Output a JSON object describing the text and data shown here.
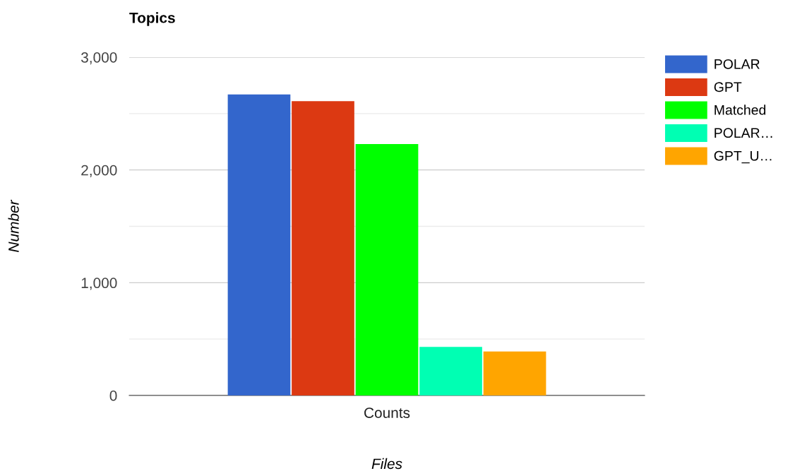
{
  "chart_data": {
    "type": "bar",
    "title": "Topics",
    "xlabel": "Files",
    "ylabel": "Number",
    "categories": [
      "Counts"
    ],
    "series": [
      {
        "name": "POLAR",
        "color": "#3366cc",
        "values": [
          2670
        ]
      },
      {
        "name": "GPT",
        "color": "#dc3912",
        "values": [
          2610
        ]
      },
      {
        "name": "Matched",
        "color": "#00ff00",
        "values": [
          2230
        ]
      },
      {
        "name": "POLAR…",
        "color": "#00ffb3",
        "values": [
          430
        ]
      },
      {
        "name": "GPT_U…",
        "color": "#ffa500",
        "values": [
          390
        ]
      }
    ],
    "ylim": [
      0,
      3000
    ],
    "yticks": [
      0,
      {
        "value": 500,
        "label": null
      },
      {
        "value": 1000,
        "label": "1,000"
      },
      {
        "value": 1500,
        "label": null
      },
      {
        "value": 2000,
        "label": "2,000"
      },
      {
        "value": 2500,
        "label": null
      },
      {
        "value": 3000,
        "label": "3,000"
      }
    ],
    "grid": "y",
    "legend": "right"
  }
}
